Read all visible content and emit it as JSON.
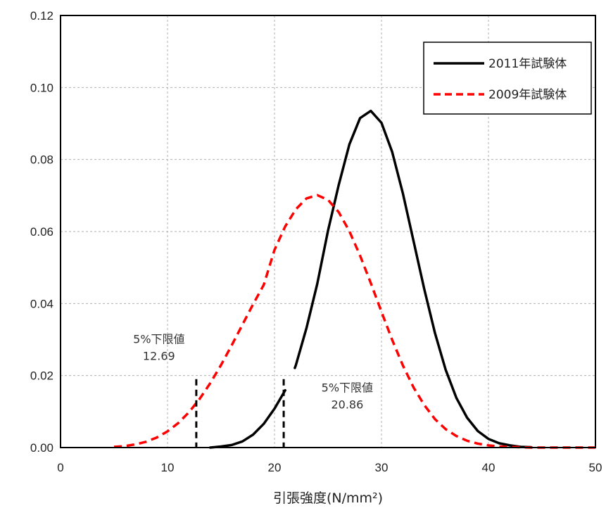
{
  "chart_data": {
    "type": "line",
    "title": "",
    "xlabel": "引張強度(N/mm²)",
    "ylabel": "",
    "xlim": [
      0,
      50
    ],
    "ylim": [
      0,
      0.12
    ],
    "x_ticks": [
      0,
      10,
      20,
      30,
      40,
      50
    ],
    "y_ticks": [
      "0.00",
      "0.02",
      "0.04",
      "0.06",
      "0.08",
      "0.10",
      "0.12"
    ],
    "grid": true,
    "legend_position": "top-right",
    "series": [
      {
        "name": "2011年試験体",
        "color": "#000000",
        "style": "solid",
        "x": [
          14,
          15,
          16,
          17,
          18,
          19,
          20,
          21,
          21.1,
          21.9,
          22,
          23,
          24,
          25,
          26,
          27,
          28,
          29,
          30,
          31,
          32,
          33,
          34,
          35,
          36,
          37,
          38,
          39,
          40,
          41,
          42,
          43,
          44
        ],
        "y": [
          0.0,
          0.0003,
          0.0007,
          0.0017,
          0.0036,
          0.0066,
          0.0108,
          0.0159,
          null,
          0.0221,
          0.0229,
          0.0333,
          0.0455,
          0.0602,
          0.0729,
          0.0842,
          0.0915,
          0.0935,
          0.0902,
          0.0821,
          0.0706,
          0.0573,
          0.044,
          0.0318,
          0.0216,
          0.0138,
          0.0083,
          0.0046,
          0.0024,
          0.0012,
          0.0006,
          0.0002,
          0.0001
        ]
      },
      {
        "name": "2009年試験体",
        "color": "#ff0000",
        "style": "dashed",
        "x": [
          5,
          6,
          7,
          8,
          9,
          10,
          11,
          12,
          13,
          14,
          15,
          16,
          17,
          18,
          19,
          20,
          21,
          22,
          23,
          24,
          25,
          26,
          27,
          28,
          29,
          30,
          31,
          32,
          33,
          34,
          35,
          36,
          37,
          38,
          39,
          40,
          41,
          42,
          43,
          44,
          45,
          46,
          47,
          48,
          49,
          50
        ],
        "y": [
          0.0002,
          0.0004,
          0.0009,
          0.0016,
          0.0028,
          0.0045,
          0.0068,
          0.0098,
          0.0135,
          0.0179,
          0.0229,
          0.0284,
          0.0341,
          0.0398,
          0.0452,
          0.0549,
          0.0614,
          0.0662,
          0.0692,
          0.0701,
          0.0688,
          0.0654,
          0.0601,
          0.0533,
          0.0457,
          0.0377,
          0.0299,
          0.0228,
          0.0167,
          0.0118,
          0.0079,
          0.0051,
          0.0032,
          0.0019,
          0.0011,
          0.0006,
          0.0003,
          0.0002,
          0.0001,
          0.0,
          0.0,
          0.0,
          0.0,
          0.0,
          0.0,
          0.0
        ]
      }
    ],
    "markers": [
      {
        "x": 12.69,
        "y_top": 0.019
      },
      {
        "x": 20.86,
        "y_top": 0.019
      }
    ],
    "annotations": [
      {
        "lines": [
          "5%下限値",
          "12.69"
        ],
        "x": 9.2,
        "y": 0.029
      },
      {
        "lines": [
          "5%下限値",
          "20.86"
        ],
        "x": 26.8,
        "y": 0.0155
      }
    ]
  }
}
